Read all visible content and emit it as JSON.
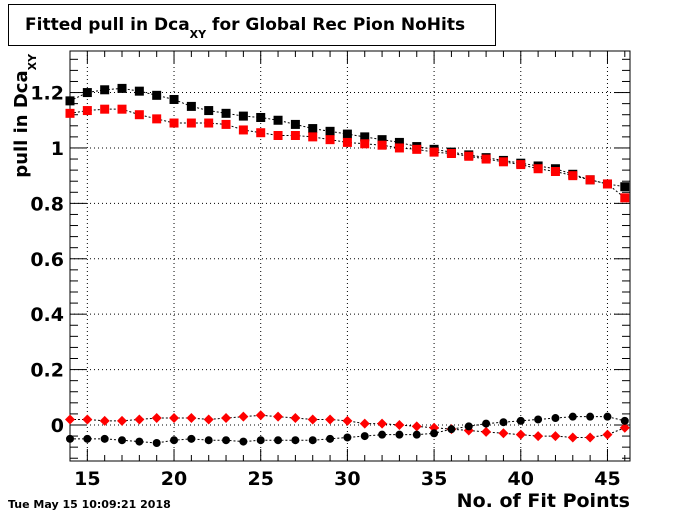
{
  "title": {
    "main": "Fitted pull in Dca",
    "sub": "XY",
    "rest": "for Global Rec Pion NoHits"
  },
  "ylabel": {
    "main": "pull in Dca",
    "sub": "XY"
  },
  "timestamp": "Tue May 15 10:09:21 2018",
  "chart_data": {
    "type": "scatter",
    "title": "Fitted pull in Dca_XY for Global Rec Pion NoHits",
    "xlabel": "No. of Fit Points",
    "ylabel": "pull in Dca_XY",
    "xlim": [
      14,
      46.3
    ],
    "ylim": [
      -0.13,
      1.35
    ],
    "xticks": [
      15,
      20,
      25,
      30,
      35,
      40,
      45
    ],
    "yticks": [
      0,
      0.2,
      0.4,
      0.6,
      0.8,
      1,
      1.2
    ],
    "ytick_labels": [
      "0",
      "0.2",
      "0.4",
      "0.6",
      "0.8",
      "1",
      "1.2"
    ],
    "grid": true,
    "x": [
      14,
      15,
      16,
      17,
      18,
      19,
      20,
      21,
      22,
      23,
      24,
      25,
      26,
      27,
      28,
      29,
      30,
      31,
      32,
      33,
      34,
      35,
      36,
      37,
      38,
      39,
      40,
      41,
      42,
      43,
      44,
      45,
      46
    ],
    "series": [
      {
        "color": "#000000",
        "marker": "square",
        "values": [
          1.17,
          1.2,
          1.21,
          1.215,
          1.205,
          1.19,
          1.175,
          1.15,
          1.135,
          1.125,
          1.115,
          1.11,
          1.1,
          1.085,
          1.07,
          1.06,
          1.05,
          1.04,
          1.03,
          1.02,
          1.005,
          0.995,
          0.985,
          0.975,
          0.965,
          0.955,
          0.945,
          0.935,
          0.925,
          0.905,
          0.885,
          0.87,
          0.86
        ]
      },
      {
        "color": "#ff0000",
        "marker": "square",
        "values": [
          1.125,
          1.135,
          1.14,
          1.14,
          1.12,
          1.105,
          1.09,
          1.09,
          1.09,
          1.085,
          1.065,
          1.055,
          1.045,
          1.045,
          1.04,
          1.03,
          1.02,
          1.015,
          1.01,
          1.0,
          0.995,
          0.985,
          0.98,
          0.97,
          0.96,
          0.95,
          0.94,
          0.925,
          0.915,
          0.9,
          0.885,
          0.87,
          0.82
        ]
      },
      {
        "color": "#ff0000",
        "marker": "diamond",
        "values": [
          0.02,
          0.02,
          0.015,
          0.015,
          0.02,
          0.025,
          0.025,
          0.025,
          0.02,
          0.025,
          0.03,
          0.035,
          0.03,
          0.025,
          0.02,
          0.02,
          0.015,
          0.005,
          0.005,
          0.0,
          -0.005,
          -0.01,
          -0.015,
          -0.02,
          -0.025,
          -0.03,
          -0.035,
          -0.04,
          -0.04,
          -0.045,
          -0.045,
          -0.035,
          -0.01
        ]
      },
      {
        "color": "#000000",
        "marker": "circle",
        "values": [
          -0.05,
          -0.05,
          -0.05,
          -0.055,
          -0.06,
          -0.065,
          -0.055,
          -0.05,
          -0.055,
          -0.055,
          -0.06,
          -0.055,
          -0.055,
          -0.055,
          -0.055,
          -0.05,
          -0.045,
          -0.04,
          -0.035,
          -0.035,
          -0.035,
          -0.03,
          -0.015,
          -0.005,
          0.005,
          0.01,
          0.015,
          0.02,
          0.025,
          0.03,
          0.03,
          0.03,
          0.015
        ]
      }
    ]
  }
}
